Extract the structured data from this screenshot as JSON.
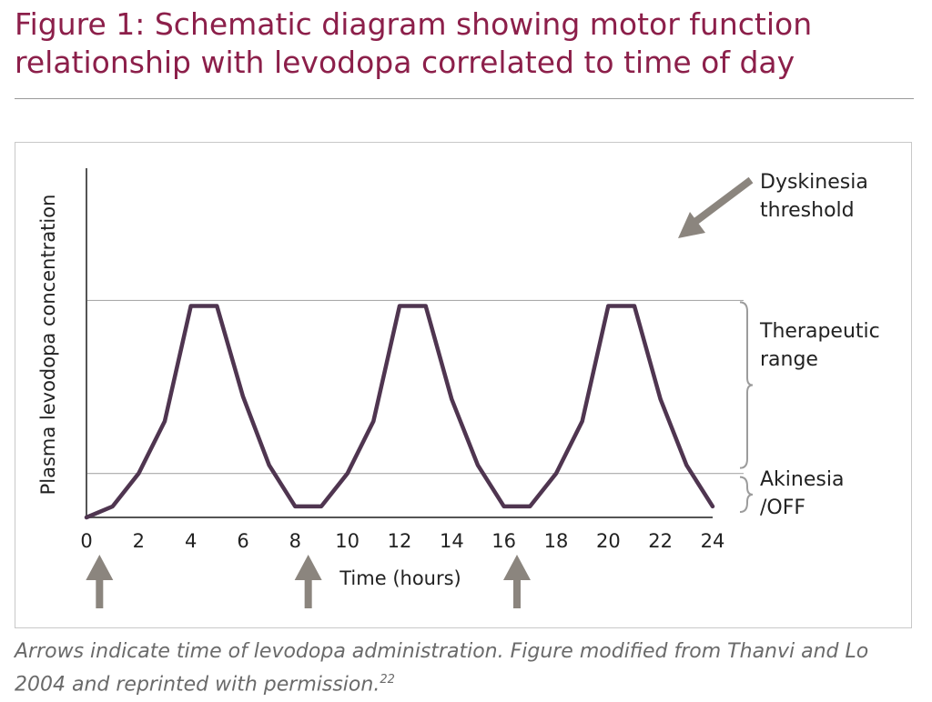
{
  "title": {
    "line1": "Figure 1: Schematic diagram showing motor function",
    "line2": "relationship with levodopa correlated to time of day"
  },
  "caption": {
    "text": "Arrows indicate time of levodopa administration. Figure modified from Thanvi and Lo 2004 and reprinted with permission.",
    "ref": "22"
  },
  "colors": {
    "title": "#8c1f4a",
    "line": "#4f3550",
    "arrow": "#8b857e",
    "axis": "#555555",
    "reference": "#aaaaaa",
    "brace": "#9c9c9c"
  },
  "chart_data": {
    "type": "line",
    "xlabel": "Time (hours)",
    "ylabel": "Plasma levodopa concentration",
    "xlim": [
      0,
      24
    ],
    "ylim": [
      0,
      100
    ],
    "x_ticks": [
      0,
      2,
      4,
      6,
      8,
      10,
      12,
      14,
      16,
      18,
      20,
      22,
      24
    ],
    "y_ticks_shown": false,
    "series": [
      {
        "x": [
          0,
          1,
          2,
          3,
          4,
          5,
          6,
          7,
          8,
          9,
          10,
          11,
          12,
          13,
          14,
          15,
          16,
          17,
          18,
          19,
          20,
          21,
          22,
          23,
          24
        ],
        "values": [
          0,
          4,
          16,
          35,
          77,
          77,
          44,
          19,
          4,
          4,
          16,
          35,
          77,
          77,
          43,
          19,
          4,
          4,
          16,
          35,
          77,
          77,
          43,
          19,
          4
        ]
      }
    ],
    "reference_lines": [
      {
        "name": "dyskinesia-threshold",
        "y": 79
      },
      {
        "name": "akinesia-threshold",
        "y": 16
      }
    ],
    "dose_times": [
      0.5,
      8.5,
      16.5
    ],
    "annotations": {
      "dyskinesia": [
        "Dyskinesia",
        "threshold"
      ],
      "therapeutic": [
        "Therapeutic",
        "range"
      ],
      "akinesia": [
        "Akinesia",
        "/OFF"
      ]
    },
    "legend": "none",
    "grid": false
  }
}
